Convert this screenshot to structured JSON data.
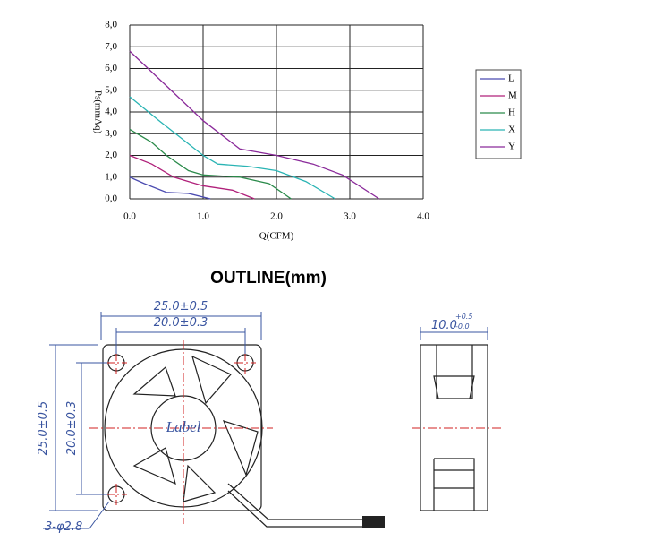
{
  "chart_data": {
    "type": "line",
    "y_label": "Ps(mmAq)",
    "x_label": "Q(CFM)",
    "xlim": [
      0,
      4
    ],
    "ylim": [
      0,
      8
    ],
    "xticks": [
      {
        "value": 0,
        "label": "0.0"
      },
      {
        "value": 1,
        "label": "1.0"
      },
      {
        "value": 2,
        "label": "2.0"
      },
      {
        "value": 3,
        "label": "3.0"
      },
      {
        "value": 4,
        "label": "4.0"
      }
    ],
    "yticks": [
      {
        "value": 0,
        "label": "0,0"
      },
      {
        "value": 1,
        "label": "1,0"
      },
      {
        "value": 2,
        "label": "2,0"
      },
      {
        "value": 3,
        "label": "3,0"
      },
      {
        "value": 4,
        "label": "4,0"
      },
      {
        "value": 5,
        "label": "5,0"
      },
      {
        "value": 6,
        "label": "6,0"
      },
      {
        "value": 7,
        "label": "7,0"
      },
      {
        "value": 8,
        "label": "8,0"
      }
    ],
    "grid": true,
    "legend": "right",
    "series": [
      {
        "name": "L",
        "color": "#4b4bb0",
        "x": [
          0,
          0.2,
          0.5,
          0.8,
          1.1
        ],
        "values": [
          1.0,
          0.7,
          0.3,
          0.25,
          0
        ]
      },
      {
        "name": "M",
        "color": "#b0207a",
        "x": [
          0,
          0.3,
          0.6,
          1.0,
          1.4,
          1.7
        ],
        "values": [
          2.0,
          1.6,
          1.0,
          0.6,
          0.4,
          0
        ]
      },
      {
        "name": "H",
        "color": "#2a8a4a",
        "x": [
          0,
          0.3,
          0.5,
          0.8,
          1.0,
          1.5,
          1.9,
          2.2
        ],
        "values": [
          3.2,
          2.6,
          2.0,
          1.3,
          1.1,
          1.0,
          0.7,
          0
        ]
      },
      {
        "name": "X",
        "color": "#2ab4b4",
        "x": [
          0,
          0.4,
          0.7,
          1.0,
          1.2,
          1.6,
          2.0,
          2.4,
          2.8
        ],
        "values": [
          4.7,
          3.6,
          2.8,
          2.0,
          1.6,
          1.5,
          1.3,
          0.8,
          0
        ]
      },
      {
        "name": "Y",
        "color": "#8a2a9a",
        "x": [
          0,
          0.5,
          1.0,
          1.5,
          2.0,
          2.5,
          2.9,
          3.4
        ],
        "values": [
          6.8,
          5.2,
          3.6,
          2.3,
          2.0,
          1.6,
          1.1,
          0
        ]
      }
    ]
  },
  "outline": {
    "title": "OUTLINE(mm)",
    "width_outer": "25.0±0.5",
    "width_holes": "20.0±0.3",
    "height_outer": "25.0±0.5",
    "height_holes": "20.0±0.3",
    "holes": "3-φ2.8",
    "depth": "10.0",
    "depth_tol_upper": "+0.5",
    "depth_tol_lower": "-0.0",
    "label": "Label"
  }
}
